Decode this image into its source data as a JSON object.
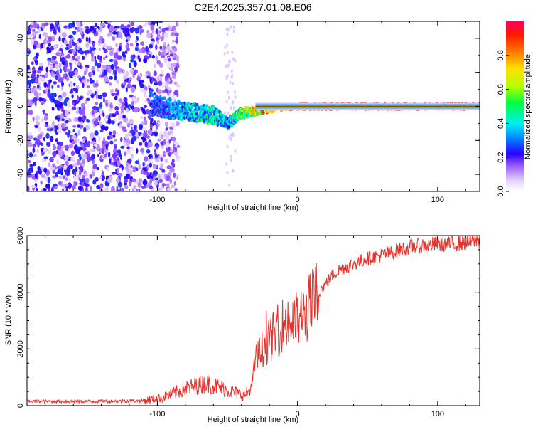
{
  "figure_title": "C2E4.2025.357.01.08.E06",
  "colors": {
    "snr_line": "#e8312a",
    "axis": "#000000",
    "spectrum_strong": "#6a00ff",
    "spectrum_weak": "#c9b3ff"
  },
  "chart_data": [
    {
      "type": "heatmap",
      "title": "",
      "xlabel": "Height of straight line (km)",
      "ylabel": "Frequency (Hz)",
      "xlim": [
        -193,
        130
      ],
      "ylim": [
        -50,
        50
      ],
      "x_ticks": [
        -100,
        0,
        100
      ],
      "y_ticks": [
        -40,
        -20,
        0,
        20,
        40
      ],
      "colorbar": {
        "label": "Normalized spectral amplitude",
        "range": [
          0,
          1
        ],
        "ticks": [
          0.0,
          0.2,
          0.4,
          0.6,
          0.8
        ]
      },
      "description_points": [
        {
          "x": -150,
          "freq_center": 0,
          "freq_spread": 50,
          "amp": 0.15
        },
        {
          "x": -100,
          "freq_center": 0,
          "freq_spread": 6,
          "amp": 0.25
        },
        {
          "x": -80,
          "freq_center": -3,
          "freq_spread": 5,
          "amp": 0.35
        },
        {
          "x": -60,
          "freq_center": -5,
          "freq_spread": 5,
          "amp": 0.4
        },
        {
          "x": -50,
          "freq_center": -10,
          "freq_spread": 3,
          "amp": 0.3
        },
        {
          "x": -40,
          "freq_center": -4,
          "freq_spread": 3,
          "amp": 0.5
        },
        {
          "x": -25,
          "freq_center": -2,
          "freq_spread": 2,
          "amp": 0.7
        },
        {
          "x": 0,
          "freq_center": 0,
          "freq_spread": 2,
          "amp": 0.85
        },
        {
          "x": 50,
          "freq_center": 0,
          "freq_spread": 2,
          "amp": 0.9
        },
        {
          "x": 125,
          "freq_center": 0,
          "freq_spread": 2,
          "amp": 0.9
        }
      ]
    },
    {
      "type": "line",
      "title": "",
      "xlabel": "Height of straight line (km)",
      "ylabel": "SNR (10 * v/v)",
      "xlim": [
        -193,
        130
      ],
      "ylim": [
        0,
        6000
      ],
      "x_ticks": [
        -100,
        0,
        100
      ],
      "y_ticks": [
        0,
        2000,
        4000,
        6000
      ],
      "series": [
        {
          "name": "SNR",
          "x": [
            -193,
            -150,
            -110,
            -95,
            -80,
            -65,
            -50,
            -38,
            -33,
            -30,
            -25,
            -20,
            -15,
            -10,
            -5,
            0,
            5,
            10,
            15,
            20,
            25,
            30,
            40,
            50,
            60,
            70,
            80,
            90,
            100,
            110,
            120,
            130
          ],
          "y": [
            150,
            150,
            170,
            300,
            600,
            800,
            550,
            350,
            600,
            1600,
            2000,
            2300,
            2600,
            2900,
            2900,
            3000,
            3200,
            3600,
            4000,
            4300,
            4600,
            4800,
            5000,
            5200,
            5300,
            5450,
            5600,
            5650,
            5700,
            5700,
            5750,
            5850
          ]
        }
      ]
    }
  ]
}
